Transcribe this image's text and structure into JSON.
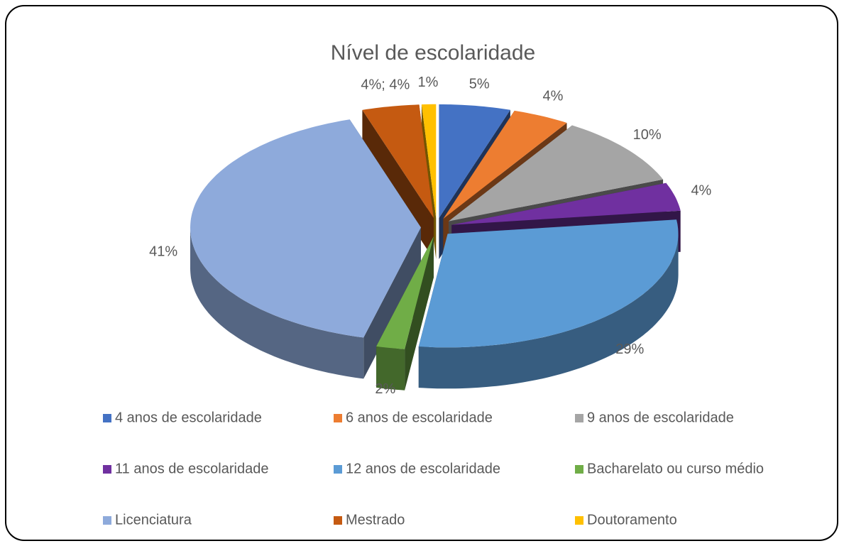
{
  "chart_data": {
    "type": "pie3d",
    "title": "Nível de escolaridade",
    "categories": [
      "4 anos de escolaridade",
      "6 anos de escolaridade",
      "9 anos de escolaridade",
      "11 anos de escolaridade",
      "12 anos de escolaridade",
      "Bacharelato ou curso médio",
      "Licenciatura",
      "Mestrado",
      "Doutoramento"
    ],
    "values": [
      5,
      4,
      10,
      4,
      29,
      2,
      41,
      4,
      1
    ],
    "value_labels": [
      "5%",
      "4%",
      "10%",
      "4%",
      "29%",
      "2%",
      "41%",
      "4%; 4%",
      "1%"
    ],
    "colors": [
      "#4472c4",
      "#ed7d31",
      "#a5a5a5",
      "#7030a0",
      "#5b9bd5",
      "#70ad47",
      "#8eaadb",
      "#c55a11",
      "#ffc000"
    ],
    "legend": "bottom"
  }
}
